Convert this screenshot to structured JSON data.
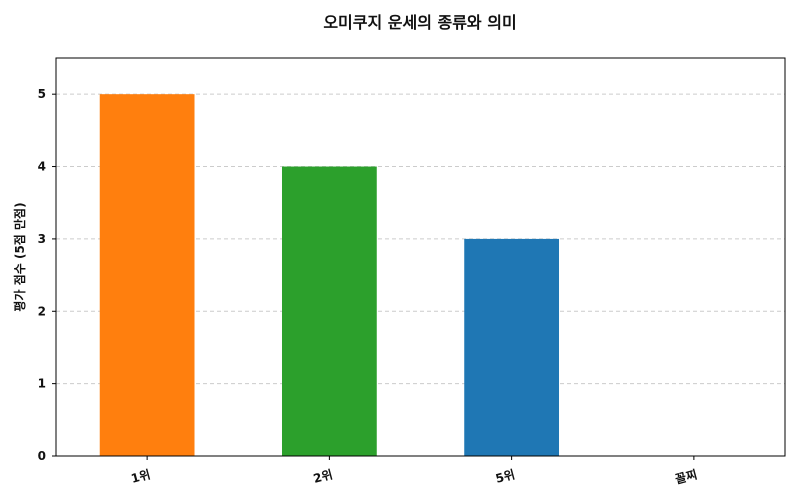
{
  "chart_data": {
    "type": "bar",
    "title": "오미쿠지 운세의 종류와 의미",
    "xlabel": "",
    "ylabel": "평가 점수 (5점 만점)",
    "categories": [
      "1위",
      "2위",
      "5위",
      "꼴찌"
    ],
    "values": [
      5,
      4,
      3,
      0
    ],
    "colors": [
      "#ff7f0e",
      "#2ca02c",
      "#1f77b4",
      "#d62728"
    ],
    "ylim": [
      0,
      5.5
    ],
    "yticks": [
      0,
      1,
      2,
      3,
      4,
      5
    ],
    "grid": true,
    "legend": "none"
  }
}
